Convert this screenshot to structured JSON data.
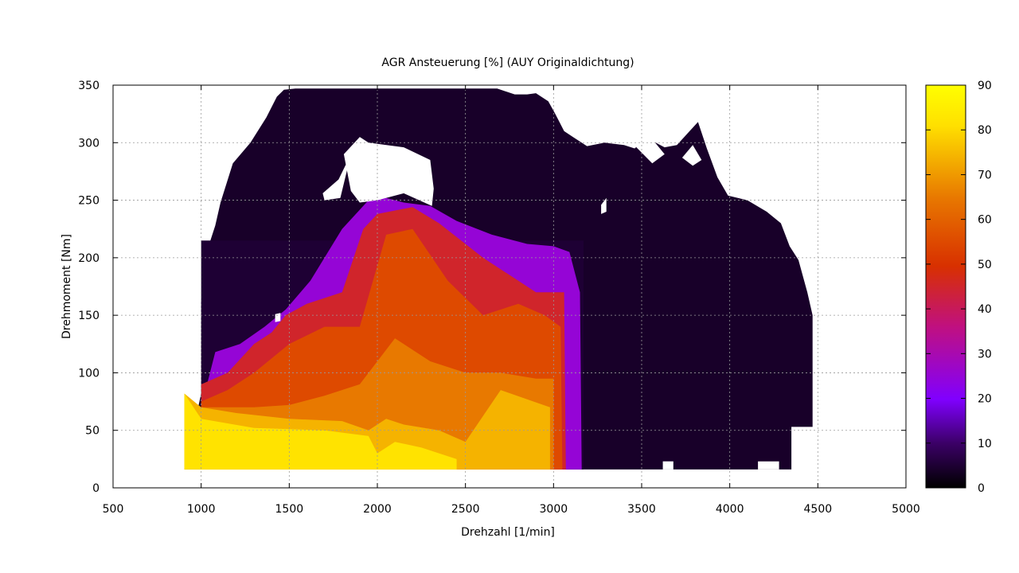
{
  "chart_data": {
    "type": "heatmap",
    "title": "AGR Ansteuerung [%]   (AUY Originaldichtung)",
    "xlabel": "Drehzahl [1/min]",
    "ylabel": "Drehmoment [Nm]",
    "xlim": [
      500,
      5000
    ],
    "ylim": [
      0,
      350
    ],
    "xticks": [
      500,
      1000,
      1500,
      2000,
      2500,
      3000,
      3500,
      4000,
      4500,
      5000
    ],
    "yticks": [
      0,
      50,
      100,
      150,
      200,
      250,
      300,
      350
    ],
    "grid": true,
    "colorbar": {
      "range": [
        0,
        90
      ],
      "ticks": [
        0,
        10,
        20,
        30,
        40,
        50,
        60,
        70,
        80,
        90
      ],
      "palette": [
        "#000000",
        "#3b0066",
        "#8000ff",
        "#c01080",
        "#d83000",
        "#e87800",
        "#ffe000",
        "#ffff00"
      ]
    },
    "map_boundary": {
      "x": [
        905,
        1000,
        1000,
        1010,
        1080,
        1110,
        1180,
        1280,
        1370,
        1430,
        1470,
        1535,
        1560,
        1720,
        2000,
        2200,
        2450,
        2620,
        2680,
        2780,
        2850,
        2900,
        2970,
        3010,
        3060,
        3110,
        3190,
        3290,
        3400,
        3460,
        3520,
        3580,
        3630,
        3700,
        3760,
        3820,
        3870,
        3930,
        3990,
        4100,
        4210,
        4290,
        4340,
        4390,
        4440,
        4470,
        4470,
        4350,
        4350,
        4290,
        3000,
        905
      ],
      "y": [
        16,
        82,
        160,
        195,
        228,
        248,
        282,
        300,
        322,
        340,
        346,
        347,
        347,
        347,
        347,
        347,
        347,
        347,
        347,
        342,
        342,
        343,
        336,
        325,
        310,
        305,
        297,
        300,
        298,
        295,
        302,
        300,
        296,
        298,
        308,
        318,
        295,
        270,
        254,
        250,
        240,
        230,
        210,
        198,
        170,
        150,
        53,
        53,
        16,
        16,
        16,
        16
      ]
    },
    "holes": [
      {
        "x": [
          1810,
          1900,
          1950,
          2150,
          2300,
          2320,
          2310,
          2150,
          2000,
          1900,
          1850
        ],
        "y": [
          290,
          305,
          300,
          296,
          285,
          260,
          245,
          256,
          250,
          248,
          258
        ]
      },
      {
        "x": [
          1690,
          1780,
          1850,
          1790,
          1700
        ],
        "y": [
          256,
          268,
          290,
          252,
          250
        ]
      },
      {
        "x": [
          3470,
          3560,
          3630,
          3550,
          3480
        ],
        "y": [
          296,
          282,
          290,
          305,
          300
        ]
      },
      {
        "x": [
          3730,
          3790,
          3840,
          3790
        ],
        "y": [
          287,
          280,
          285,
          298
        ]
      },
      {
        "x": [
          3270,
          3300,
          3300,
          3270
        ],
        "y": [
          246,
          252,
          240,
          238
        ]
      },
      {
        "x": [
          1420,
          1450,
          1450,
          1420
        ],
        "y": [
          151,
          152,
          145,
          144
        ]
      },
      {
        "x": [
          3620,
          3680,
          3680,
          3620
        ],
        "y": [
          16,
          16,
          23,
          23
        ]
      },
      {
        "x": [
          4160,
          4280,
          4280,
          4160
        ],
        "y": [
          16,
          16,
          23,
          23
        ]
      }
    ],
    "regions": [
      {
        "level": 5,
        "x": [
          1000,
          3170,
          3170,
          1000
        ],
        "y": [
          16,
          16,
          215,
          215
        ]
      },
      {
        "level": 25,
        "x": [
          1000,
          1080,
          1220,
          1360,
          1480,
          1620,
          1800,
          1950,
          2050,
          2150,
          2300,
          2450,
          2650,
          2850,
          3000,
          3090,
          3150,
          3160,
          1000
        ],
        "y": [
          70,
          118,
          125,
          140,
          155,
          180,
          225,
          250,
          252,
          248,
          245,
          232,
          220,
          212,
          210,
          205,
          170,
          16,
          16
        ]
      },
      {
        "level": 45,
        "x": [
          1000,
          1150,
          1300,
          1400,
          1480,
          1600,
          1800,
          1920,
          2000,
          2200,
          2350,
          2600,
          2800,
          2900,
          3000,
          3060,
          3070,
          1000
        ],
        "y": [
          90,
          100,
          125,
          135,
          150,
          160,
          170,
          225,
          238,
          244,
          230,
          200,
          180,
          170,
          170,
          170,
          16,
          16
        ]
      },
      {
        "level": 55,
        "x": [
          1000,
          1150,
          1300,
          1500,
          1700,
          1900,
          2050,
          2200,
          2400,
          2600,
          2800,
          2950,
          3040,
          3050,
          1000
        ],
        "y": [
          75,
          85,
          100,
          125,
          140,
          140,
          220,
          225,
          180,
          150,
          160,
          150,
          140,
          16,
          16
        ]
      },
      {
        "level": 65,
        "x": [
          1000,
          1300,
          1500,
          1700,
          1900,
          2000,
          2100,
          2300,
          2500,
          2700,
          2900,
          3000,
          3000,
          1000
        ],
        "y": [
          70,
          70,
          72,
          80,
          90,
          110,
          130,
          110,
          100,
          100,
          95,
          95,
          16,
          16
        ]
      },
      {
        "level": 74,
        "x": [
          905,
          1000,
          1200,
          1500,
          1800,
          1950,
          2050,
          2150,
          2350,
          2500,
          2700,
          2980,
          2980,
          905
        ],
        "y": [
          82,
          70,
          65,
          60,
          58,
          50,
          60,
          55,
          50,
          40,
          85,
          70,
          16,
          16
        ]
      },
      {
        "level": 82,
        "x": [
          905,
          1000,
          1300,
          1700,
          1950,
          2000,
          2100,
          2250,
          2450,
          2450,
          905
        ],
        "y": [
          82,
          60,
          52,
          50,
          45,
          30,
          40,
          35,
          25,
          16,
          16
        ]
      }
    ]
  }
}
